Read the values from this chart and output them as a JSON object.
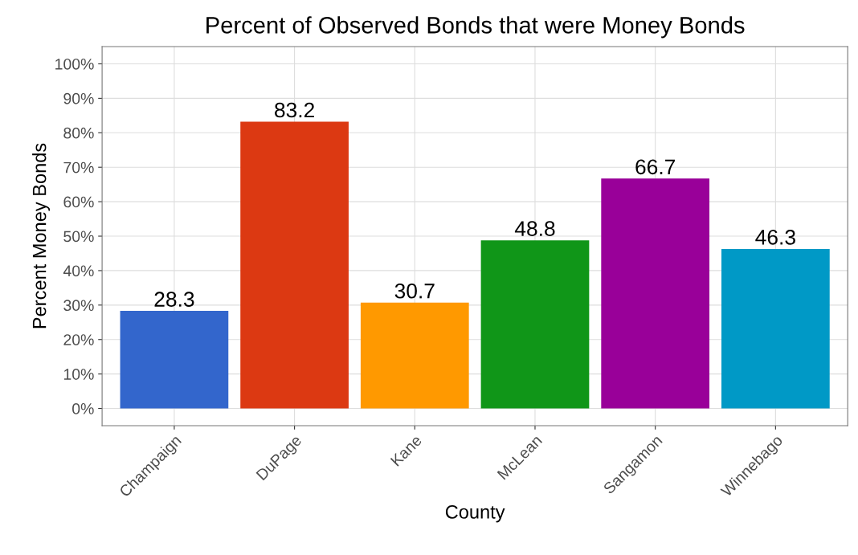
{
  "chart_data": {
    "type": "bar",
    "title": "Percent of Observed Bonds that were Money Bonds",
    "xlabel": "County",
    "ylabel": "Percent Money Bonds",
    "categories": [
      "Champaign",
      "DuPage",
      "Kane",
      "McLean",
      "Sangamon",
      "Winnebago"
    ],
    "values": [
      28.3,
      83.2,
      30.7,
      48.8,
      66.7,
      46.3
    ],
    "colors": [
      "#3366cc",
      "#dc3912",
      "#ff9900",
      "#109618",
      "#990099",
      "#0099c6"
    ],
    "ylim": [
      -5,
      105
    ],
    "yticks": [
      {
        "value": 0,
        "label": "0%"
      },
      {
        "value": 10,
        "label": "10%"
      },
      {
        "value": 20,
        "label": "20%"
      },
      {
        "value": 30,
        "label": "30%"
      },
      {
        "value": 40,
        "label": "40%"
      },
      {
        "value": 50,
        "label": "50%"
      },
      {
        "value": 60,
        "label": "60%"
      },
      {
        "value": 70,
        "label": "70%"
      },
      {
        "value": 80,
        "label": "80%"
      },
      {
        "value": 90,
        "label": "90%"
      },
      {
        "value": 100,
        "label": "100%"
      }
    ],
    "data_labels": true,
    "grid": true
  }
}
